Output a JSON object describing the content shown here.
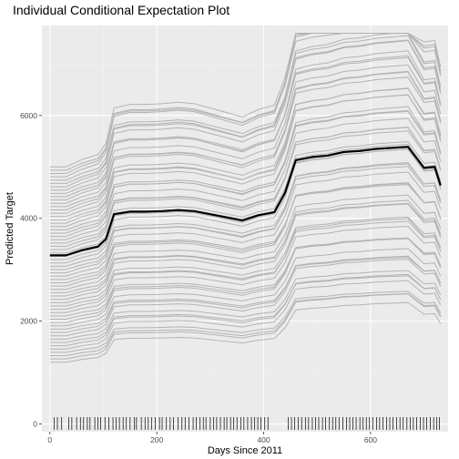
{
  "chart_data": {
    "type": "line",
    "title": "Individual Conditional Expectation Plot",
    "xlabel": "Days Since 2011",
    "ylabel": "Predicted Target",
    "xlim": [
      -15,
      745
    ],
    "ylim": [
      -150,
      7750
    ],
    "x_ticks": [
      0,
      200,
      400,
      600
    ],
    "y_ticks": [
      0,
      2000,
      4000,
      6000
    ],
    "grid": true,
    "legend": "none",
    "colors": {
      "panel_background": "#ebebeb",
      "grid_major": "#ffffff",
      "grid_minor": "#f3f3f3",
      "ice_lines": "#b3b3b3",
      "pdp_line": "#000000",
      "rug": "#000000",
      "tick_text": "#4d4d4d"
    },
    "x": [
      0,
      30,
      60,
      90,
      105,
      120,
      150,
      180,
      210,
      240,
      270,
      300,
      330,
      360,
      390,
      420,
      440,
      460,
      490,
      520,
      550,
      580,
      610,
      640,
      670,
      700,
      720,
      731
    ],
    "pdp_line": {
      "values": [
        3280,
        3280,
        3380,
        3450,
        3600,
        4080,
        4130,
        4130,
        4140,
        4160,
        4140,
        4080,
        4020,
        3960,
        4060,
        4120,
        4500,
        5130,
        5190,
        5220,
        5290,
        5310,
        5350,
        5370,
        5390,
        4980,
        5000,
        4640
      ]
    },
    "ice_lines": {
      "count": 60,
      "baseline_range": [
        1200,
        5000
      ],
      "max_value": 7600,
      "min_value": 1200
    },
    "rug_x": [
      8,
      14,
      22,
      35,
      41,
      50,
      57,
      63,
      70,
      75,
      84,
      90,
      95,
      103,
      110,
      118,
      124,
      130,
      137,
      143,
      150,
      158,
      162,
      171,
      178,
      184,
      190,
      197,
      205,
      210,
      218,
      225,
      231,
      240,
      247,
      253,
      260,
      268,
      274,
      281,
      287,
      292,
      300,
      306,
      312,
      319,
      326,
      331,
      338,
      344,
      350,
      357,
      363,
      370,
      377,
      383,
      389,
      395,
      402,
      408,
      446,
      452,
      458,
      465,
      471,
      478,
      484,
      491,
      497,
      503,
      510,
      516,
      523,
      529,
      535,
      541,
      548,
      555,
      561,
      567,
      573,
      580,
      586,
      592,
      598,
      604,
      611,
      617,
      623,
      630,
      636,
      642,
      649,
      655,
      661,
      668,
      674,
      680,
      686,
      693,
      699,
      705,
      712,
      718,
      724,
      729
    ]
  }
}
